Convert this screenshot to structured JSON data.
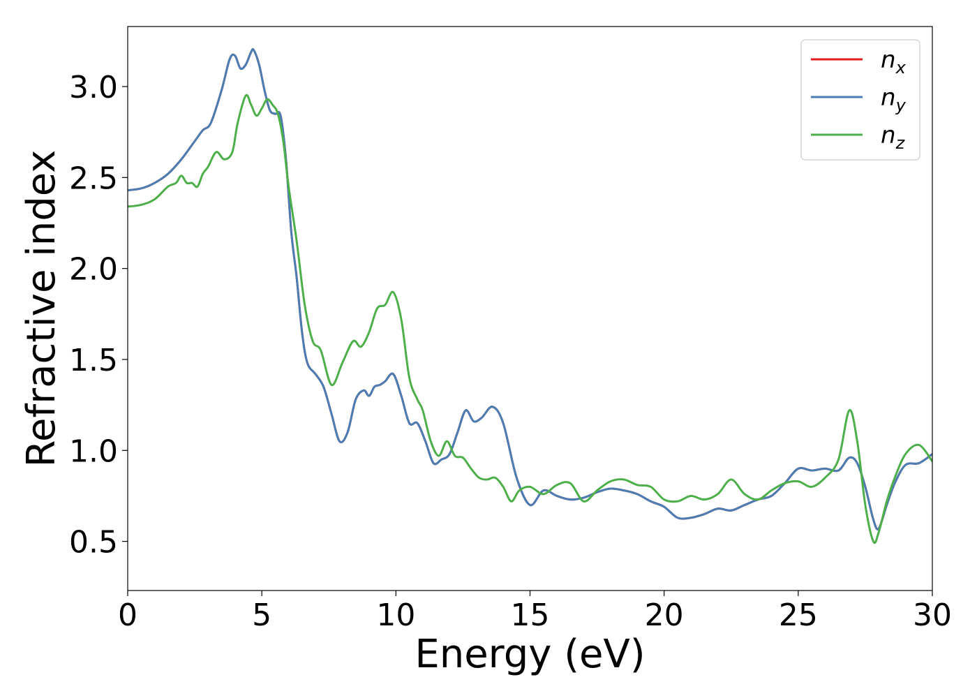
{
  "chart_data": {
    "type": "line",
    "xlabel": "Energy (eV)",
    "ylabel": "Refractive index",
    "xlim": [
      0,
      30
    ],
    "ylim": [
      0.23,
      3.33
    ],
    "xticks": [
      0,
      5,
      10,
      15,
      20,
      25,
      30
    ],
    "yticks": [
      0.5,
      1.0,
      1.5,
      2.0,
      2.5,
      3.0
    ],
    "xtick_labels": [
      "0",
      "5",
      "10",
      "15",
      "20",
      "25",
      "30"
    ],
    "ytick_labels": [
      "0.5",
      "1.0",
      "1.5",
      "2.0",
      "2.5",
      "3.0"
    ],
    "grid": false,
    "legend_position": "top-right",
    "series": [
      {
        "name": "n",
        "subscript": "x",
        "color": "#e41a1c",
        "x": [
          0,
          0.5,
          1,
          1.5,
          2,
          2.5,
          2.8,
          3.1,
          3.5,
          3.8,
          4.0,
          4.2,
          4.4,
          4.6,
          4.7,
          4.9,
          5.1,
          5.3,
          5.5,
          5.7,
          5.9,
          6.1,
          6.3,
          6.5,
          6.7,
          7.0,
          7.3,
          7.6,
          7.9,
          8.2,
          8.5,
          8.8,
          9.0,
          9.2,
          9.4,
          9.6,
          9.9,
          10.2,
          10.5,
          10.8,
          11.1,
          11.4,
          11.7,
          12.0,
          12.3,
          12.6,
          12.9,
          13.2,
          13.6,
          14.0,
          14.5,
          15.0,
          15.5,
          16.0,
          16.5,
          17.0,
          17.5,
          18.0,
          18.5,
          19.0,
          19.5,
          20.0,
          20.5,
          21.0,
          21.5,
          22.0,
          22.5,
          23.0,
          23.5,
          24.0,
          24.5,
          25.0,
          25.5,
          26.0,
          26.5,
          26.9,
          27.2,
          27.5,
          27.8,
          28.0,
          28.3,
          28.6,
          29.0,
          29.5,
          30.0
        ],
        "y": [
          2.43,
          2.44,
          2.47,
          2.52,
          2.6,
          2.7,
          2.76,
          2.8,
          2.98,
          3.15,
          3.17,
          3.1,
          3.12,
          3.19,
          3.2,
          3.12,
          2.98,
          2.87,
          2.85,
          2.84,
          2.6,
          2.2,
          1.95,
          1.65,
          1.48,
          1.42,
          1.35,
          1.2,
          1.05,
          1.1,
          1.28,
          1.33,
          1.3,
          1.35,
          1.36,
          1.38,
          1.42,
          1.3,
          1.15,
          1.15,
          1.05,
          0.93,
          0.95,
          0.98,
          1.1,
          1.22,
          1.16,
          1.18,
          1.24,
          1.15,
          0.85,
          0.7,
          0.78,
          0.75,
          0.73,
          0.74,
          0.77,
          0.79,
          0.78,
          0.76,
          0.72,
          0.69,
          0.63,
          0.63,
          0.65,
          0.68,
          0.67,
          0.7,
          0.73,
          0.75,
          0.82,
          0.9,
          0.89,
          0.9,
          0.89,
          0.96,
          0.93,
          0.8,
          0.62,
          0.57,
          0.7,
          0.82,
          0.92,
          0.93,
          0.98
        ]
      },
      {
        "name": "n",
        "subscript": "y",
        "color": "#4a7db3",
        "x": [
          0,
          0.5,
          1,
          1.5,
          2,
          2.5,
          2.8,
          3.1,
          3.5,
          3.8,
          4.0,
          4.2,
          4.4,
          4.6,
          4.7,
          4.9,
          5.1,
          5.3,
          5.5,
          5.7,
          5.9,
          6.1,
          6.3,
          6.5,
          6.7,
          7.0,
          7.3,
          7.6,
          7.9,
          8.2,
          8.5,
          8.8,
          9.0,
          9.2,
          9.4,
          9.6,
          9.9,
          10.2,
          10.5,
          10.8,
          11.1,
          11.4,
          11.7,
          12.0,
          12.3,
          12.6,
          12.9,
          13.2,
          13.6,
          14.0,
          14.5,
          15.0,
          15.5,
          16.0,
          16.5,
          17.0,
          17.5,
          18.0,
          18.5,
          19.0,
          19.5,
          20.0,
          20.5,
          21.0,
          21.5,
          22.0,
          22.5,
          23.0,
          23.5,
          24.0,
          24.5,
          25.0,
          25.5,
          26.0,
          26.5,
          26.9,
          27.2,
          27.5,
          27.8,
          28.0,
          28.3,
          28.6,
          29.0,
          29.5,
          30.0
        ],
        "y": [
          2.43,
          2.44,
          2.47,
          2.52,
          2.6,
          2.7,
          2.76,
          2.8,
          2.98,
          3.15,
          3.17,
          3.1,
          3.12,
          3.19,
          3.2,
          3.12,
          2.98,
          2.87,
          2.85,
          2.84,
          2.6,
          2.2,
          1.95,
          1.65,
          1.48,
          1.42,
          1.35,
          1.2,
          1.05,
          1.1,
          1.28,
          1.33,
          1.3,
          1.35,
          1.36,
          1.38,
          1.42,
          1.3,
          1.15,
          1.15,
          1.05,
          0.93,
          0.95,
          0.98,
          1.1,
          1.22,
          1.16,
          1.18,
          1.24,
          1.15,
          0.85,
          0.7,
          0.78,
          0.75,
          0.73,
          0.74,
          0.77,
          0.79,
          0.78,
          0.76,
          0.72,
          0.69,
          0.63,
          0.63,
          0.65,
          0.68,
          0.67,
          0.7,
          0.73,
          0.75,
          0.82,
          0.9,
          0.89,
          0.9,
          0.89,
          0.96,
          0.93,
          0.8,
          0.62,
          0.57,
          0.7,
          0.82,
          0.92,
          0.93,
          0.98
        ]
      },
      {
        "name": "n",
        "subscript": "z",
        "color": "#4daf4a",
        "x": [
          0,
          0.5,
          1,
          1.5,
          1.8,
          2.0,
          2.2,
          2.4,
          2.6,
          2.8,
          3.0,
          3.3,
          3.6,
          3.9,
          4.1,
          4.4,
          4.6,
          4.8,
          5.0,
          5.2,
          5.4,
          5.6,
          5.8,
          6.0,
          6.3,
          6.6,
          6.9,
          7.2,
          7.6,
          8.0,
          8.4,
          8.7,
          9.0,
          9.3,
          9.6,
          9.9,
          10.2,
          10.5,
          10.8,
          11.0,
          11.3,
          11.6,
          11.9,
          12.2,
          12.5,
          12.8,
          13.1,
          13.4,
          13.7,
          14.0,
          14.3,
          14.6,
          15.0,
          15.5,
          16.0,
          16.5,
          17.0,
          17.5,
          18.0,
          18.5,
          19.0,
          19.5,
          20.0,
          20.5,
          21.0,
          21.5,
          22.0,
          22.5,
          23.0,
          23.5,
          24.0,
          24.5,
          25.0,
          25.5,
          26.0,
          26.5,
          26.9,
          27.2,
          27.5,
          27.8,
          28.0,
          28.3,
          28.6,
          29.0,
          29.5,
          30.0
        ],
        "y": [
          2.34,
          2.35,
          2.38,
          2.45,
          2.47,
          2.51,
          2.47,
          2.47,
          2.45,
          2.52,
          2.56,
          2.64,
          2.6,
          2.64,
          2.8,
          2.95,
          2.9,
          2.84,
          2.88,
          2.93,
          2.9,
          2.85,
          2.7,
          2.45,
          2.15,
          1.8,
          1.6,
          1.55,
          1.36,
          1.48,
          1.6,
          1.57,
          1.65,
          1.78,
          1.8,
          1.87,
          1.72,
          1.4,
          1.28,
          1.22,
          1.05,
          0.97,
          1.05,
          0.97,
          0.96,
          0.9,
          0.85,
          0.84,
          0.85,
          0.8,
          0.72,
          0.78,
          0.8,
          0.76,
          0.81,
          0.82,
          0.72,
          0.78,
          0.83,
          0.84,
          0.81,
          0.8,
          0.73,
          0.72,
          0.75,
          0.73,
          0.76,
          0.84,
          0.76,
          0.73,
          0.78,
          0.82,
          0.83,
          0.8,
          0.85,
          0.95,
          1.22,
          1.05,
          0.7,
          0.5,
          0.55,
          0.72,
          0.85,
          0.98,
          1.03,
          0.94
        ]
      }
    ]
  }
}
